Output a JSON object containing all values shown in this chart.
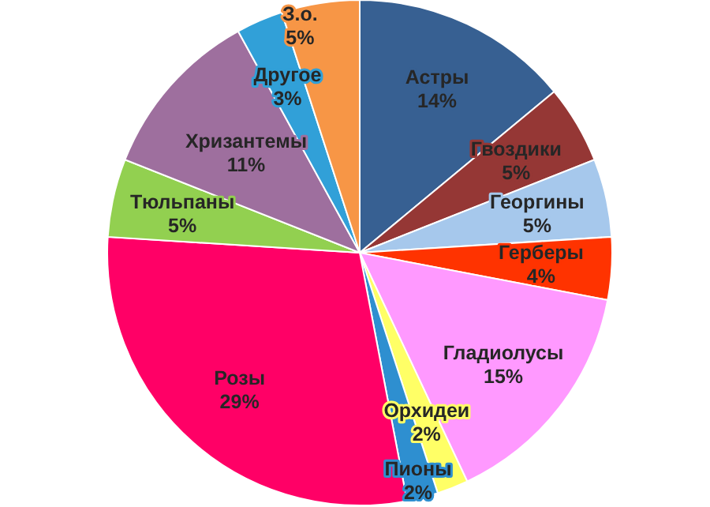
{
  "chart_data": {
    "type": "pie",
    "categories": [
      "Астры",
      "Гвоздики",
      "Георгины",
      "Герберы",
      "Гладиолусы",
      "Орхидеи",
      "Пионы",
      "Розы",
      "Тюльпаны",
      "Хризантемы",
      "Другое",
      "З.о."
    ],
    "values": [
      14,
      5,
      5,
      4,
      15,
      2,
      2,
      29,
      5,
      11,
      3,
      5
    ],
    "colors": [
      "#376092",
      "#953735",
      "#a6c8ec",
      "#ff3300",
      "#ff99ff",
      "#ffff66",
      "#2e8fd0",
      "#ff0066",
      "#92d050",
      "#9e6f9e",
      "#31a0d8",
      "#f79646"
    ],
    "value_labels": [
      "14%",
      "5%",
      "5%",
      "4%",
      "15%",
      "2%",
      "2%",
      "29%",
      "5%",
      "11%",
      "3%",
      "5%"
    ]
  }
}
